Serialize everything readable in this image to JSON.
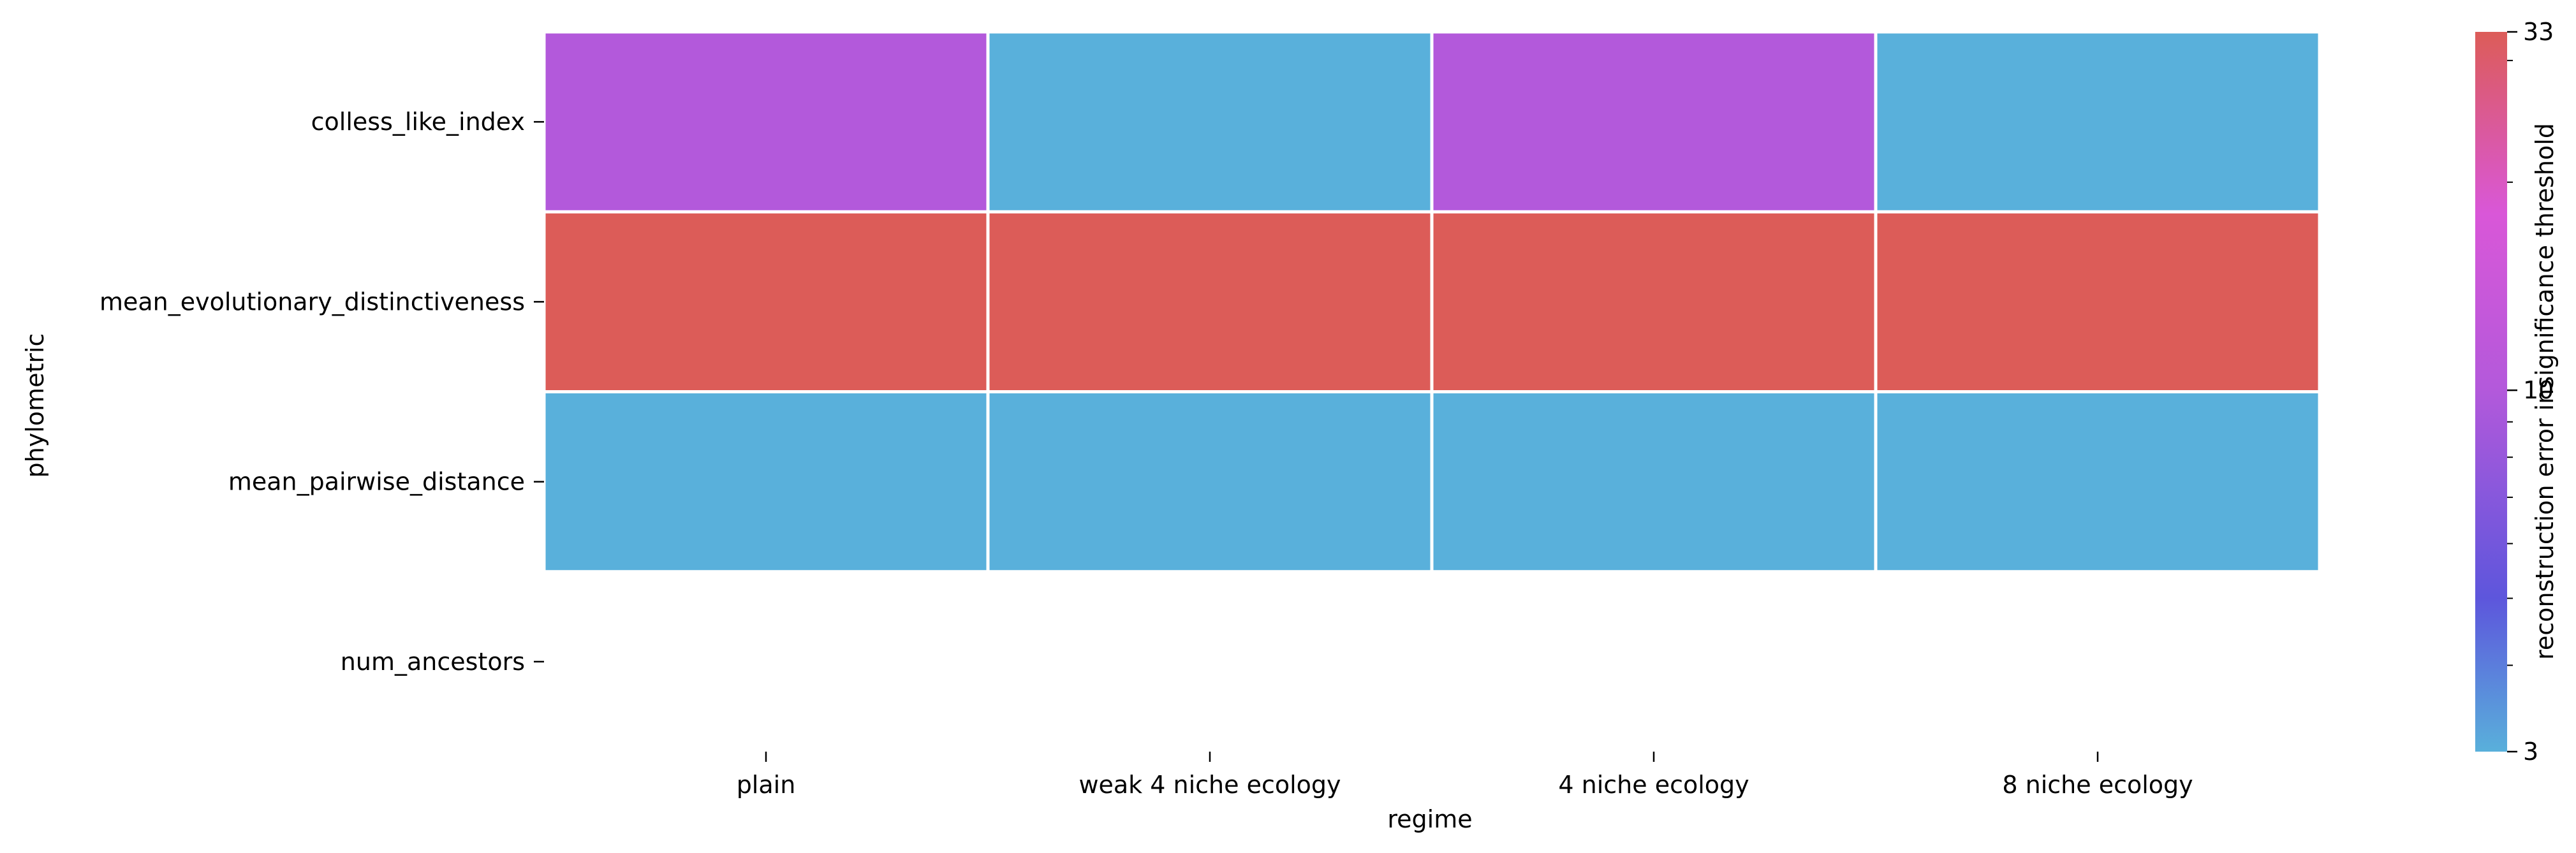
{
  "chart_data": {
    "type": "heatmap",
    "title": "",
    "xlabel": "regime",
    "ylabel": "phylometric",
    "x_categories": [
      "plain",
      "weak 4 niche ecology",
      "4 niche ecology",
      "8 niche ecology"
    ],
    "y_categories": [
      "colless_like_index",
      "mean_evolutionary_distinctiveness",
      "mean_pairwise_distance",
      "num_ancestors"
    ],
    "values": [
      [
        10,
        3,
        10,
        3
      ],
      [
        33,
        33,
        33,
        33
      ],
      [
        3,
        3,
        3,
        3
      ],
      [
        null,
        null,
        null,
        null
      ]
    ],
    "colorbar": {
      "label": "reconstruction error insignificance threshold",
      "scale": "log",
      "range": [
        3,
        33
      ],
      "ticks": [
        "3",
        "10",
        "33"
      ],
      "color_stops": [
        {
          "value": 3,
          "color": "#59b0db"
        },
        {
          "value": 5,
          "color": "#5d56dc"
        },
        {
          "value": 10,
          "color": "#b359db"
        },
        {
          "value": 18,
          "color": "#d957d8"
        },
        {
          "value": 33,
          "color": "#dc5c58"
        }
      ]
    },
    "grid": false
  }
}
